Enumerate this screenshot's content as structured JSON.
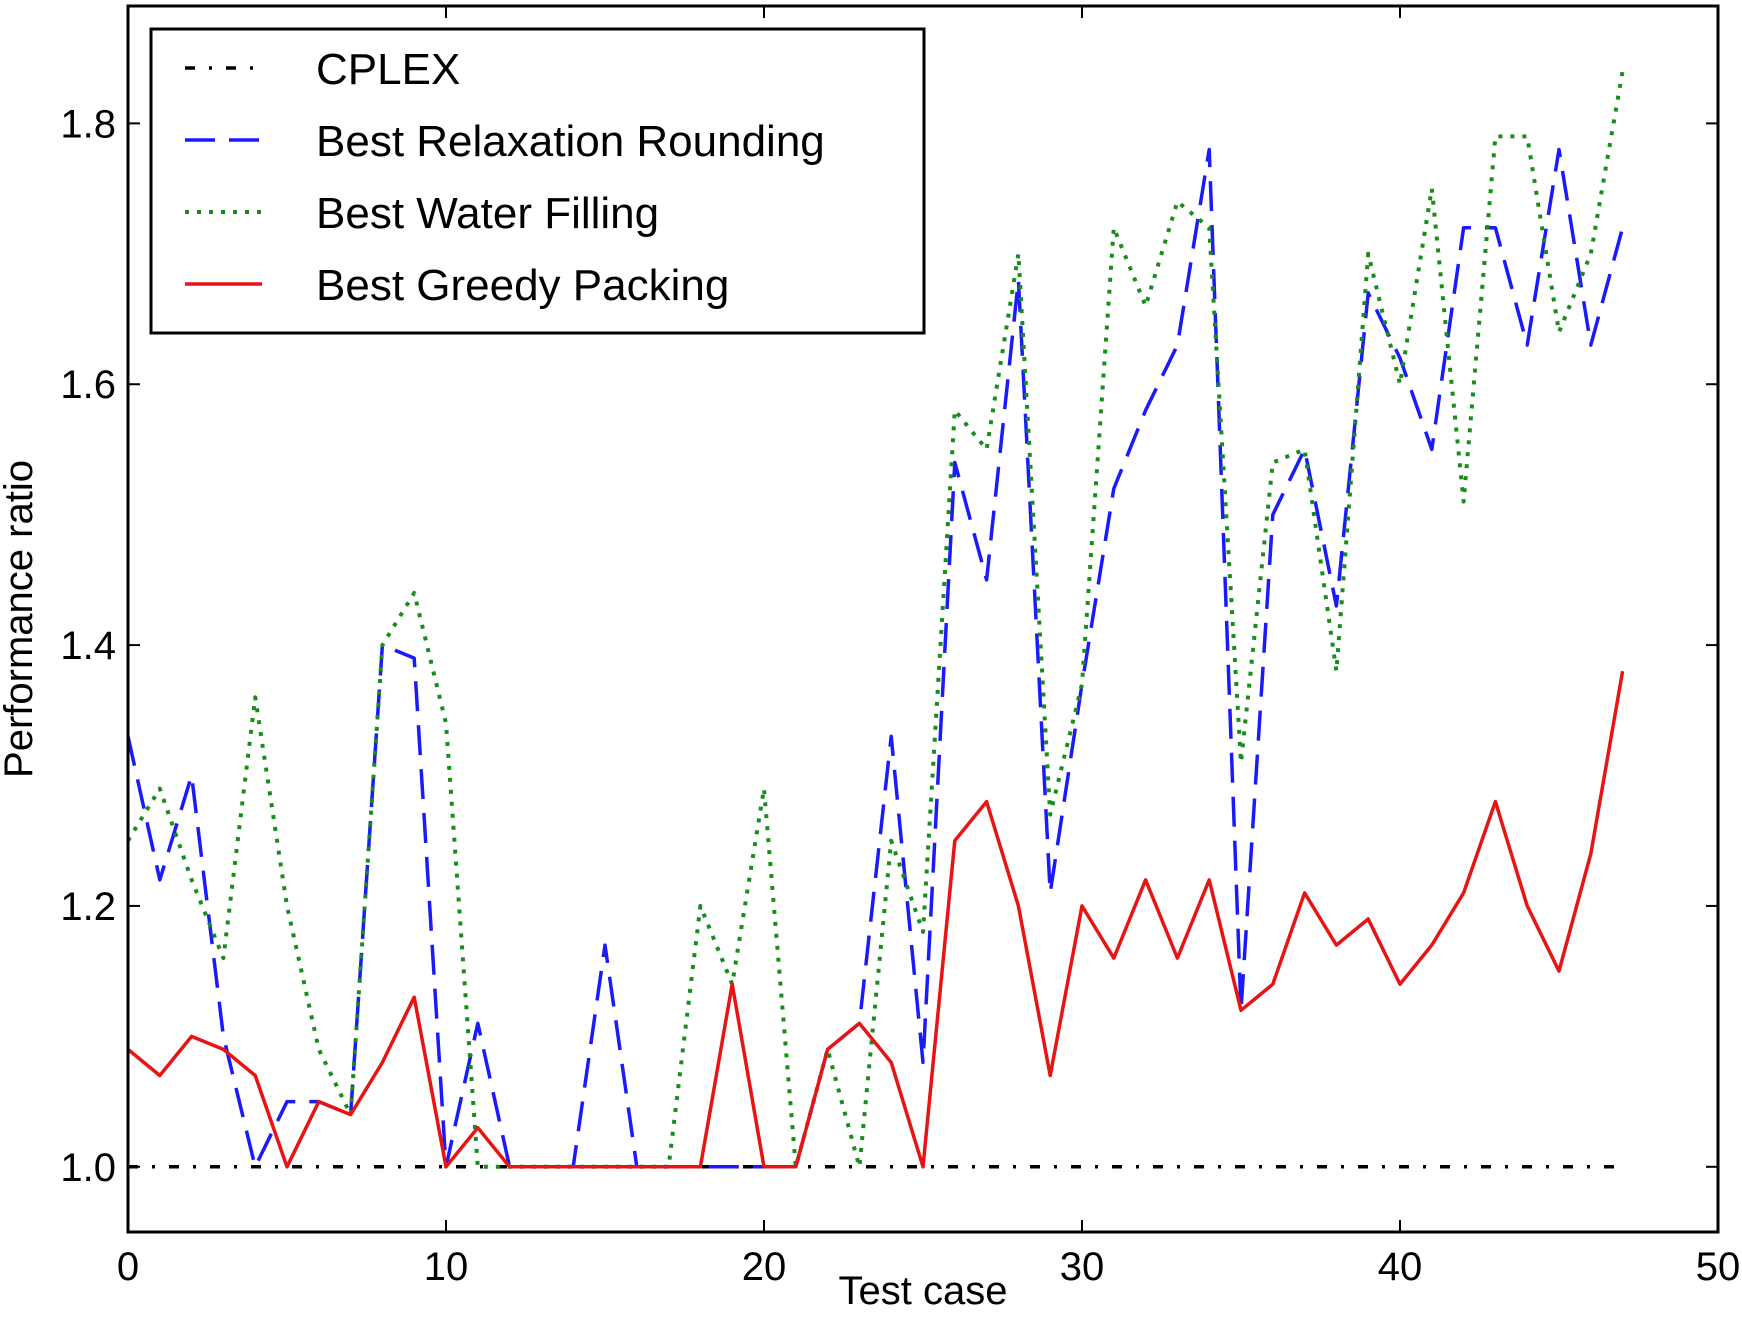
{
  "chart_data": {
    "type": "line",
    "xlabel": "Test case",
    "ylabel": "Performance ratio",
    "xlim": [
      0,
      50
    ],
    "ylim": [
      0.95,
      1.89
    ],
    "xticks": [
      0,
      10,
      20,
      30,
      40,
      50
    ],
    "yticks": [
      1.0,
      1.2,
      1.4,
      1.6,
      1.8
    ],
    "xtick_labels": [
      "0",
      "10",
      "20",
      "30",
      "40",
      "50"
    ],
    "ytick_labels": [
      "1.0",
      "1.2",
      "1.4",
      "1.6",
      "1.8"
    ],
    "grid": false,
    "legend_position": "top-left",
    "x": [
      0,
      1,
      2,
      3,
      4,
      5,
      6,
      7,
      8,
      9,
      10,
      11,
      12,
      13,
      14,
      15,
      16,
      17,
      18,
      19,
      20,
      21,
      22,
      23,
      24,
      25,
      26,
      27,
      28,
      29,
      30,
      31,
      32,
      33,
      34,
      35,
      36,
      37,
      38,
      39,
      40,
      41,
      42,
      43,
      44,
      45,
      46,
      47
    ],
    "series": [
      {
        "name": "CPLEX",
        "color": "#000000",
        "style": "dashdot",
        "values": [
          1,
          1,
          1,
          1,
          1,
          1,
          1,
          1,
          1,
          1,
          1,
          1,
          1,
          1,
          1,
          1,
          1,
          1,
          1,
          1,
          1,
          1,
          1,
          1,
          1,
          1,
          1,
          1,
          1,
          1,
          1,
          1,
          1,
          1,
          1,
          1,
          1,
          1,
          1,
          1,
          1,
          1,
          1,
          1,
          1,
          1,
          1,
          1
        ]
      },
      {
        "name": "Best Relaxation Rounding",
        "color": "#1a1aff",
        "style": "dashed",
        "values": [
          1.33,
          1.22,
          1.3,
          1.1,
          1.0,
          1.05,
          1.05,
          1.04,
          1.4,
          1.39,
          1.0,
          1.11,
          1.0,
          1.0,
          1.0,
          1.17,
          1.0,
          1.0,
          1.0,
          1.0,
          1.0,
          1.0,
          1.09,
          1.11,
          1.33,
          1.08,
          1.54,
          1.45,
          1.68,
          1.21,
          1.37,
          1.52,
          1.58,
          1.63,
          1.78,
          1.12,
          1.5,
          1.55,
          1.43,
          1.67,
          1.62,
          1.55,
          1.72,
          1.72,
          1.63,
          1.78,
          1.63,
          1.72
        ]
      },
      {
        "name": "Best Water Filling",
        "color": "#1a8c1a",
        "style": "dotted",
        "values": [
          1.25,
          1.29,
          1.22,
          1.16,
          1.36,
          1.2,
          1.09,
          1.04,
          1.4,
          1.44,
          1.34,
          1.0,
          1.0,
          1.0,
          1.0,
          1.0,
          1.0,
          1.0,
          1.2,
          1.14,
          1.29,
          1.0,
          1.09,
          1.0,
          1.25,
          1.18,
          1.58,
          1.55,
          1.7,
          1.27,
          1.37,
          1.72,
          1.66,
          1.74,
          1.72,
          1.31,
          1.54,
          1.55,
          1.38,
          1.7,
          1.6,
          1.75,
          1.51,
          1.79,
          1.79,
          1.64,
          1.7,
          1.84
        ]
      },
      {
        "name": "Best Greedy Packing",
        "color": "#e81414",
        "style": "solid",
        "values": [
          1.09,
          1.07,
          1.1,
          1.09,
          1.07,
          1.0,
          1.05,
          1.04,
          1.08,
          1.13,
          1.0,
          1.03,
          1.0,
          1.0,
          1.0,
          1.0,
          1.0,
          1.0,
          1.0,
          1.14,
          1.0,
          1.0,
          1.09,
          1.11,
          1.08,
          1.0,
          1.25,
          1.28,
          1.2,
          1.07,
          1.2,
          1.16,
          1.22,
          1.16,
          1.22,
          1.12,
          1.14,
          1.21,
          1.17,
          1.19,
          1.14,
          1.17,
          1.21,
          1.28,
          1.2,
          1.15,
          1.24,
          1.38
        ]
      }
    ]
  }
}
